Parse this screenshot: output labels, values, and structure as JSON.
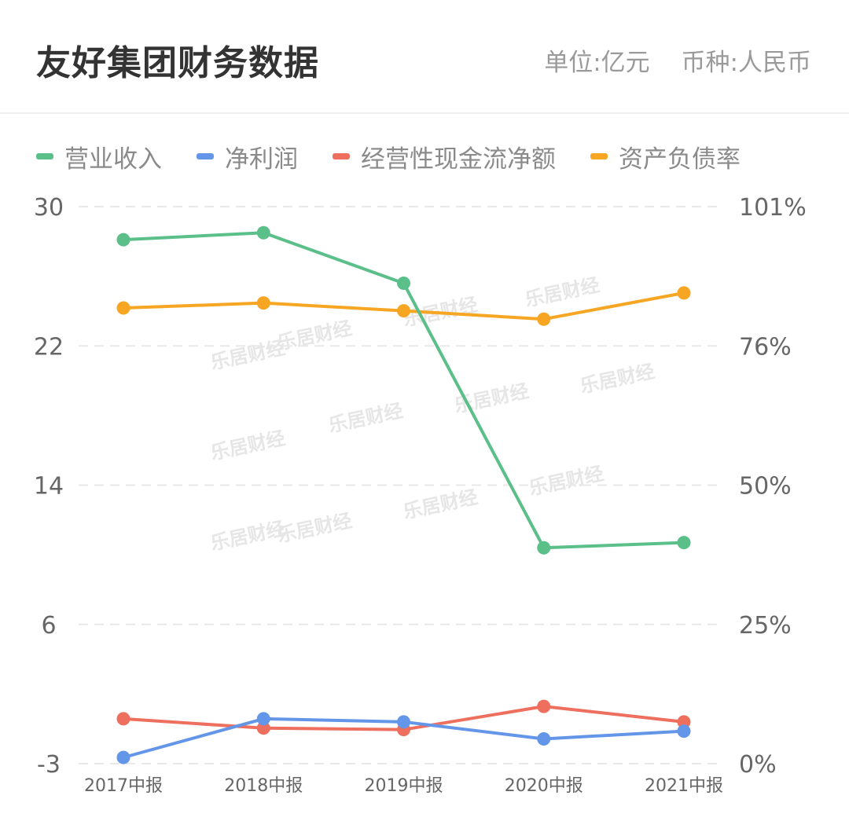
{
  "header": {
    "title": "友好集团财务数据",
    "unit": "单位:亿元",
    "currency": "币种:人民币"
  },
  "watermark": "乐居财经",
  "chart_data": {
    "type": "line",
    "categories": [
      "2017中报",
      "2018中报",
      "2019中报",
      "2020中报",
      "2021中报"
    ],
    "y_left": {
      "ticks": [
        "30",
        "22",
        "14",
        "6",
        "-3"
      ],
      "range": [
        -3,
        30
      ]
    },
    "y_right": {
      "ticks": [
        "101%",
        "76%",
        "50%",
        "25%",
        "0%"
      ],
      "range": [
        0,
        101
      ]
    },
    "grid": "horizontal dashed",
    "legend_position": "top-left",
    "series": [
      {
        "name": "营业收入",
        "axis": "left",
        "color": "#5bbf8a",
        "values": [
          28.1,
          28.5,
          25.6,
          10.4,
          10.7
        ]
      },
      {
        "name": "净利润",
        "axis": "left",
        "color": "#6396e8",
        "values": [
          -2.6,
          -0.1,
          -0.3,
          -1.4,
          -0.9
        ]
      },
      {
        "name": "经营性现金流净额",
        "axis": "left",
        "color": "#ee6f5e",
        "values": [
          -0.1,
          -0.7,
          -0.8,
          0.7,
          -0.3
        ]
      },
      {
        "name": "资产负债率",
        "axis": "right",
        "color": "#f7a623",
        "values": [
          82.8,
          83.7,
          82.3,
          80.8,
          85.5
        ]
      }
    ]
  }
}
